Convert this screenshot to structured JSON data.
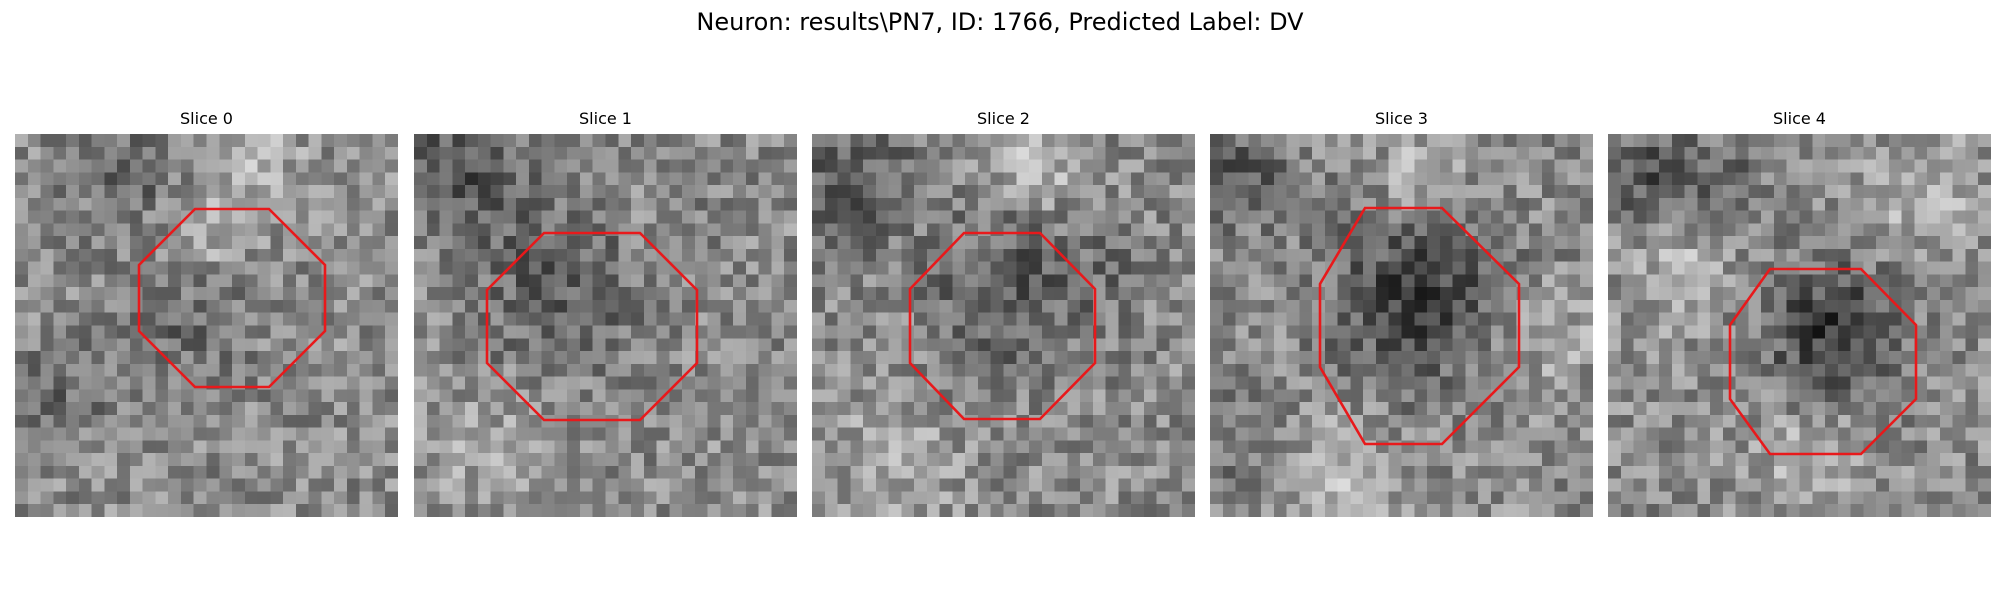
{
  "figure": {
    "title": "Neuron: results\\PN7, ID: 1766, Predicted Label: DV"
  },
  "panels": [
    {
      "title": "Slice 0",
      "roi_color": "#e8191b",
      "image": "grayscale-patch"
    },
    {
      "title": "Slice 1",
      "roi_color": "#e8191b",
      "image": "grayscale-patch"
    },
    {
      "title": "Slice 2",
      "roi_color": "#e8191b",
      "image": "grayscale-patch"
    },
    {
      "title": "Slice 3",
      "roi_color": "#e8191b",
      "image": "grayscale-patch"
    },
    {
      "title": "Slice 4",
      "roi_color": "#e8191b",
      "image": "grayscale-patch"
    }
  ]
}
